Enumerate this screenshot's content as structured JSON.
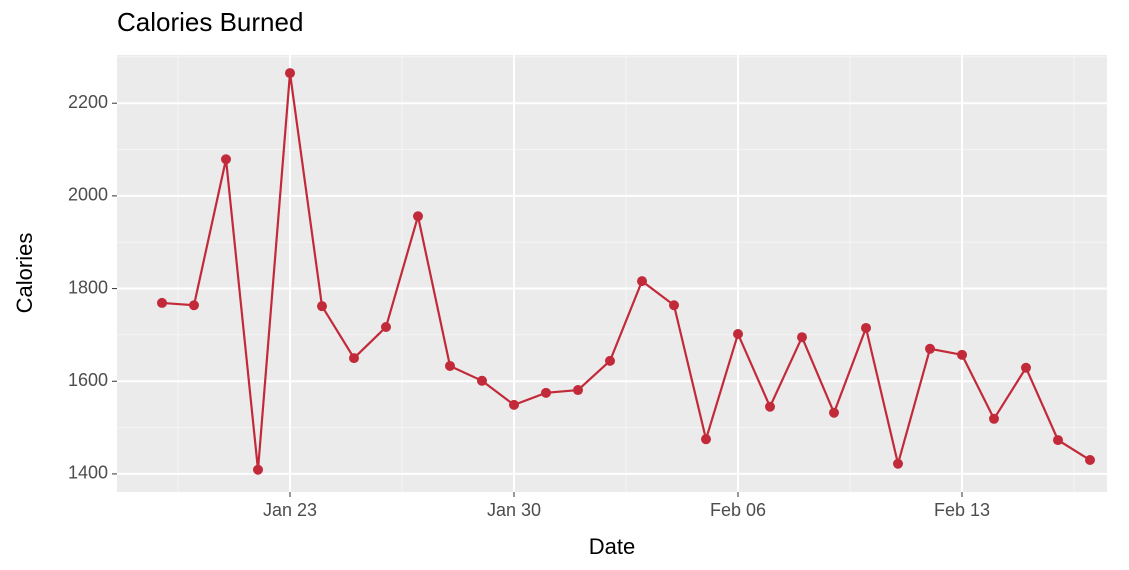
{
  "chart_data": {
    "type": "line",
    "title": "Calories Burned",
    "x_label": "Date",
    "y_label": "Calories",
    "x": [
      "Jan 19",
      "Jan 20",
      "Jan 21",
      "Jan 22",
      "Jan 23",
      "Jan 24",
      "Jan 25",
      "Jan 26",
      "Jan 27",
      "Jan 28",
      "Jan 29",
      "Jan 30",
      "Jan 31",
      "Feb 01",
      "Feb 02",
      "Feb 03",
      "Feb 04",
      "Feb 05",
      "Feb 06",
      "Feb 07",
      "Feb 08",
      "Feb 09",
      "Feb 10",
      "Feb 11",
      "Feb 12",
      "Feb 13",
      "Feb 14",
      "Feb 15",
      "Feb 16",
      "Feb 17"
    ],
    "series": [
      {
        "name": "Calories",
        "color": "#c22a3a",
        "values": [
          1769,
          1764,
          2079,
          1409,
          2265,
          1762,
          1650,
          1717,
          1956,
          1633,
          1601,
          1549,
          1575,
          1581,
          1644,
          1816,
          1764,
          1475,
          1702,
          1545,
          1695,
          1532,
          1715,
          1422,
          1670,
          1657,
          1519,
          1629,
          1473,
          1430
        ]
      }
    ],
    "xlim": [
      "Jan 18",
      "Feb 18"
    ],
    "xticks": [
      "Jan 23",
      "Jan 30",
      "Feb 06",
      "Feb 13"
    ],
    "ylim": [
      1361,
      2304
    ],
    "yticks": [
      1400,
      1600,
      1800,
      2000,
      2200
    ],
    "grid": true
  }
}
